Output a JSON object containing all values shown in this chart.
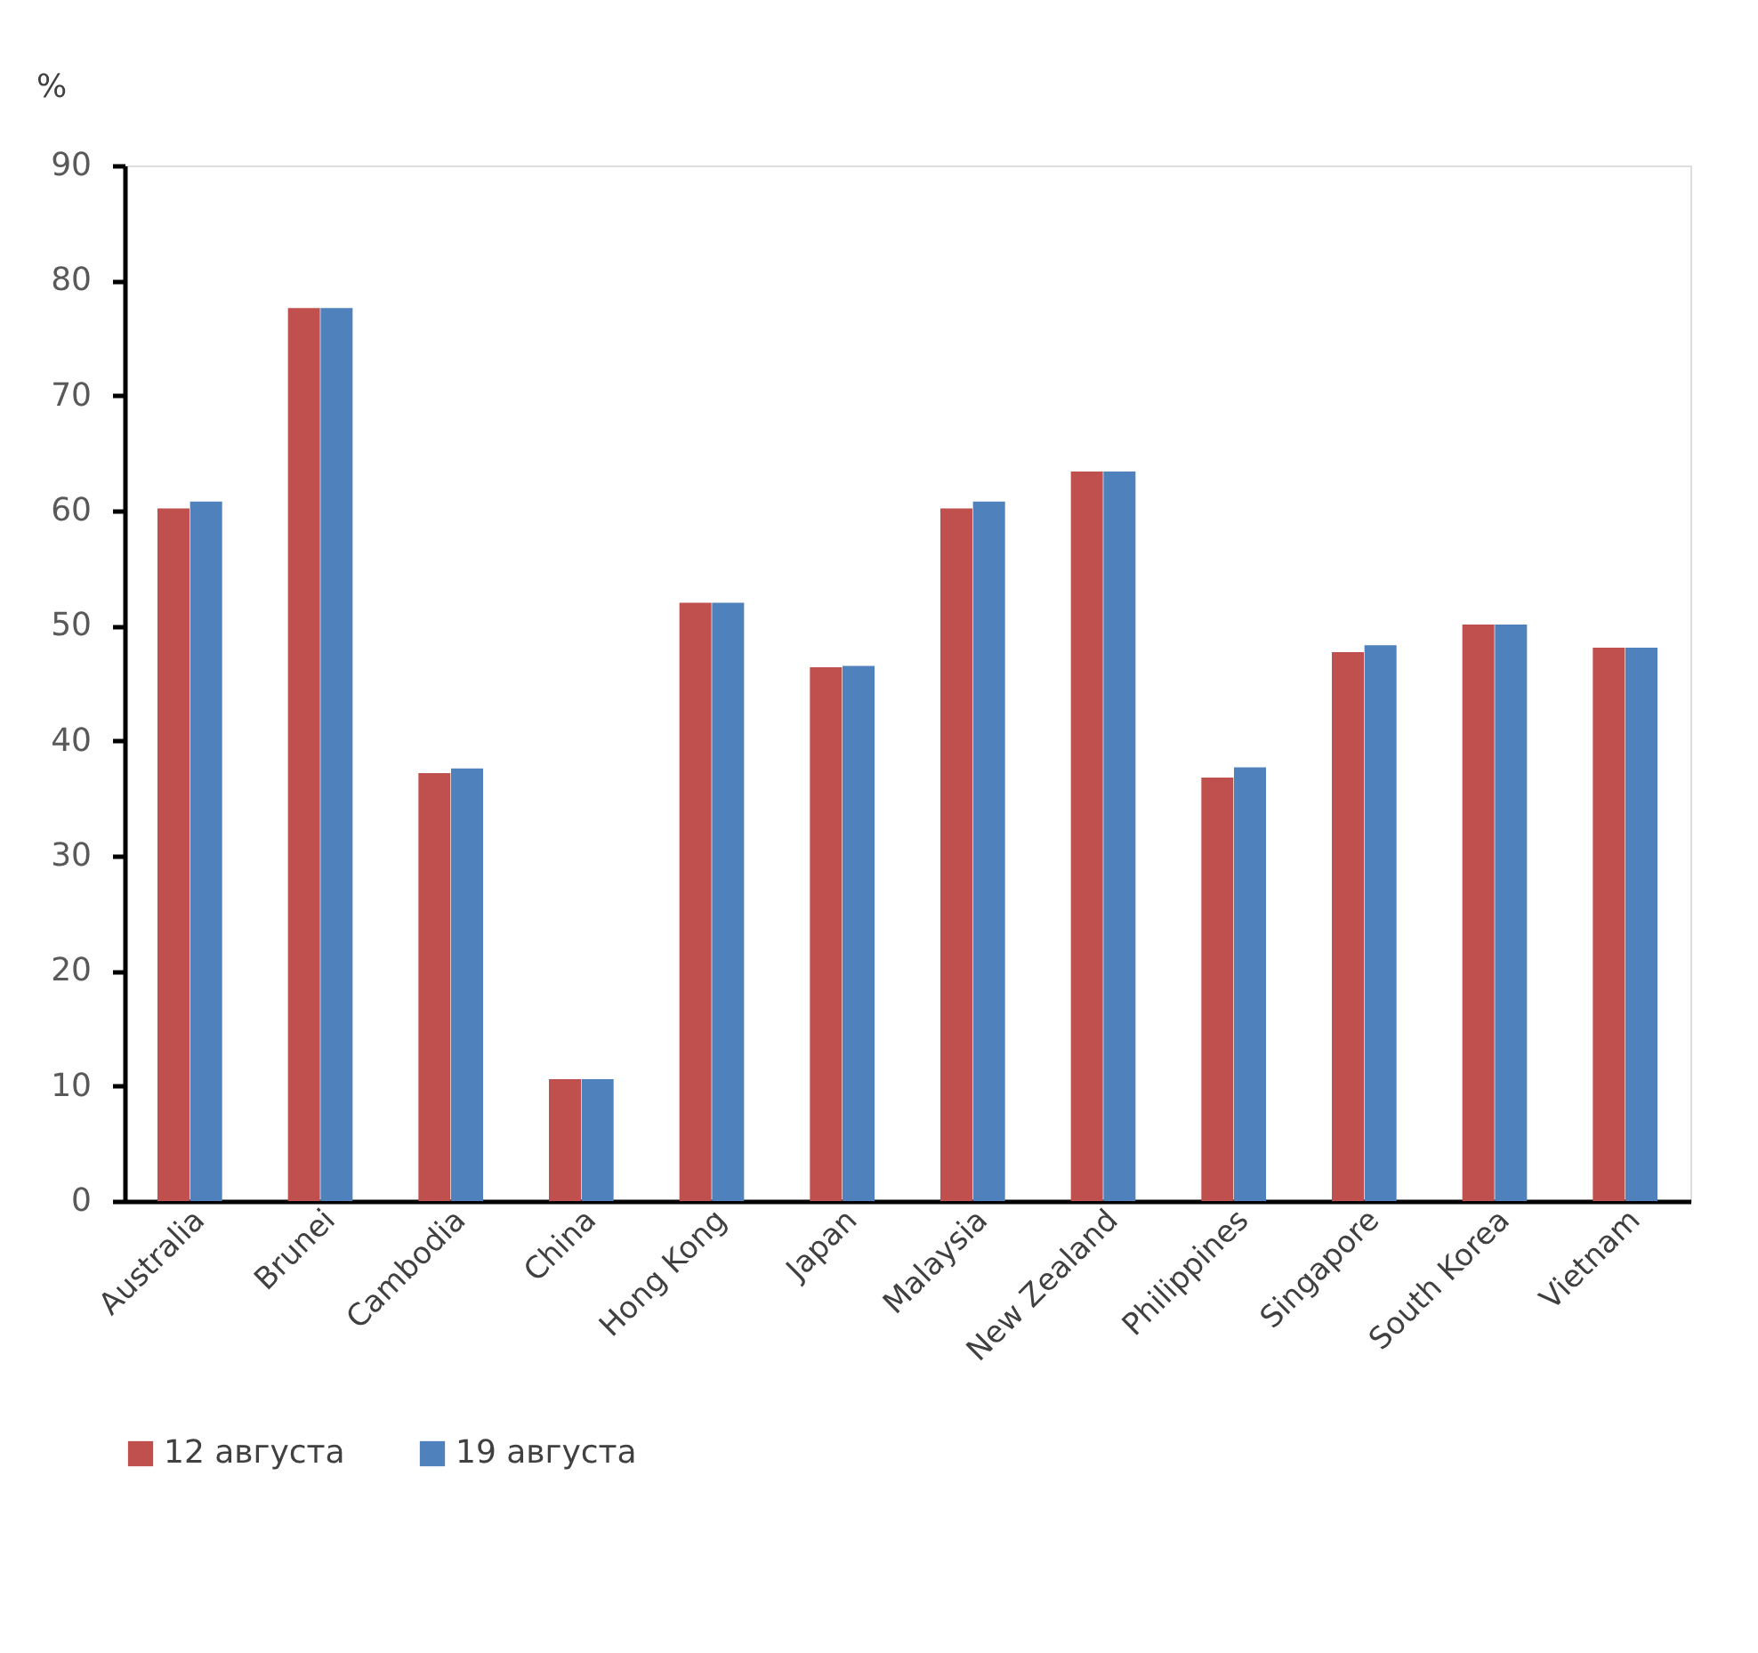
{
  "chart_data": {
    "type": "bar",
    "ylabel": "%",
    "categories": [
      "Australia",
      "Brunei",
      "Cambodia",
      "China",
      "Hong Kong",
      "Japan",
      "Malaysia",
      "New Zealand",
      "Philippines",
      "Singapore",
      "South Korea",
      "Vietnam"
    ],
    "series": [
      {
        "name": "12 августа",
        "color": "#c0504d",
        "values": [
          60.2,
          77.6,
          37.2,
          10.6,
          52.0,
          46.4,
          60.2,
          63.4,
          36.8,
          47.7,
          50.1,
          48.1
        ]
      },
      {
        "name": "19 августа",
        "color": "#4f81bd",
        "values": [
          60.8,
          77.6,
          37.6,
          10.6,
          52.0,
          46.5,
          60.8,
          63.4,
          37.7,
          48.3,
          50.1,
          48.1
        ]
      }
    ],
    "ylim": [
      0,
      90
    ],
    "yticks": [
      0,
      10,
      20,
      30,
      40,
      50,
      60,
      70,
      80,
      90
    ],
    "grid": false,
    "legend": "bottom"
  }
}
